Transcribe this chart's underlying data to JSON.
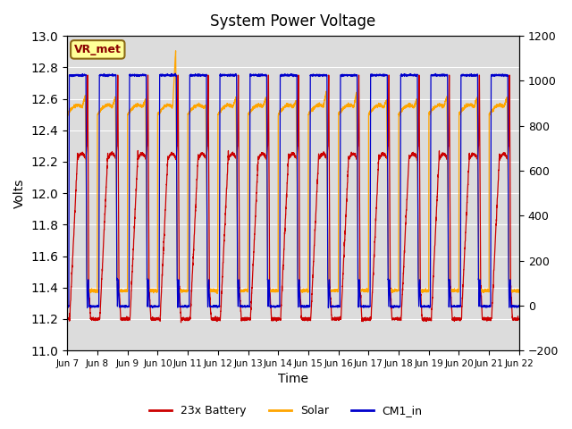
{
  "title": "System Power Voltage",
  "xlabel": "Time",
  "ylabel_left": "Volts",
  "ylim_left": [
    11.0,
    13.0
  ],
  "ylim_right": [
    -200,
    1200
  ],
  "annotation_text": "VR_met",
  "annotation_box_color": "#FFFF99",
  "annotation_text_color": "#8B0000",
  "annotation_border_color": "#8B6914",
  "legend_entries": [
    "23x Battery",
    "Solar",
    "CM1_in"
  ],
  "line_colors": [
    "#CC0000",
    "#FFA500",
    "#0000CC"
  ],
  "bg_color": "#DCDCDC",
  "x_tick_labels": [
    "Jun 7",
    "Jun 8",
    "Jun 9",
    "Jun 10",
    "Jun 11",
    "Jun 12",
    "Jun 13",
    "Jun 14",
    "Jun 15",
    "Jun 16",
    "Jun 17",
    "Jun 18",
    "Jun 19",
    "Jun 20",
    "Jun 21",
    "Jun 22"
  ],
  "yticks_left": [
    11.0,
    11.2,
    11.4,
    11.6,
    11.8,
    12.0,
    12.2,
    12.4,
    12.6,
    12.8,
    13.0
  ],
  "yticks_right": [
    -200,
    0,
    200,
    400,
    600,
    800,
    1000,
    1200
  ]
}
